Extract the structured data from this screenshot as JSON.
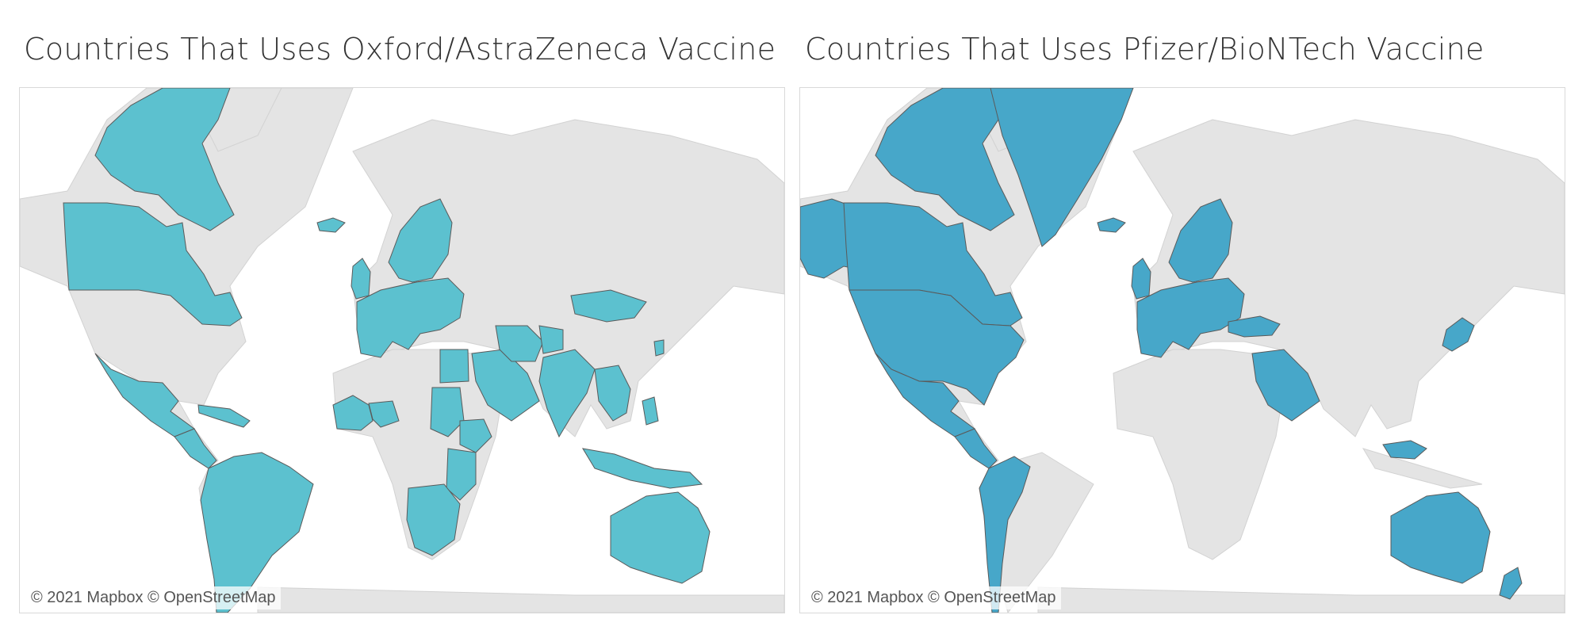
{
  "maps": [
    {
      "title": "Countries That Uses Oxford/AstraZeneca Vaccine",
      "attribution": "© 2021 Mapbox © OpenStreetMap",
      "highlight_color": "#5cc1cf",
      "vaccine": "Oxford/AstraZeneca",
      "highlighted_regions": [
        "canada",
        "arctic-islands",
        "mexico",
        "central-america",
        "caribbean",
        "south-america",
        "iceland",
        "united-kingdom",
        "europe",
        "scandinavia",
        "west-africa",
        "nigeria",
        "sudan",
        "ethiopia",
        "east-africa",
        "southern-africa",
        "egypt",
        "arabia",
        "iran",
        "afghanistan",
        "india",
        "southeast-asia",
        "indonesia",
        "philippines",
        "mongolia",
        "south-korea",
        "australia"
      ]
    },
    {
      "title": "Countries That Uses Pfizer/BioNTech Vaccine",
      "attribution": "© 2021 Mapbox © OpenStreetMap",
      "highlight_color": "#47a7c9",
      "vaccine": "Pfizer/BioNTech",
      "highlighted_regions": [
        "alaska",
        "canada",
        "arctic-islands",
        "greenland",
        "united-states",
        "mexico",
        "central-america",
        "andean-south-america",
        "iceland",
        "united-kingdom",
        "europe",
        "scandinavia",
        "turkey",
        "arabia",
        "japan",
        "malaysia",
        "australia",
        "new-zealand"
      ]
    }
  ],
  "base_land_color": "#e4e4e4",
  "border_color": "#5a5a5a",
  "background_color": "#ffffff"
}
